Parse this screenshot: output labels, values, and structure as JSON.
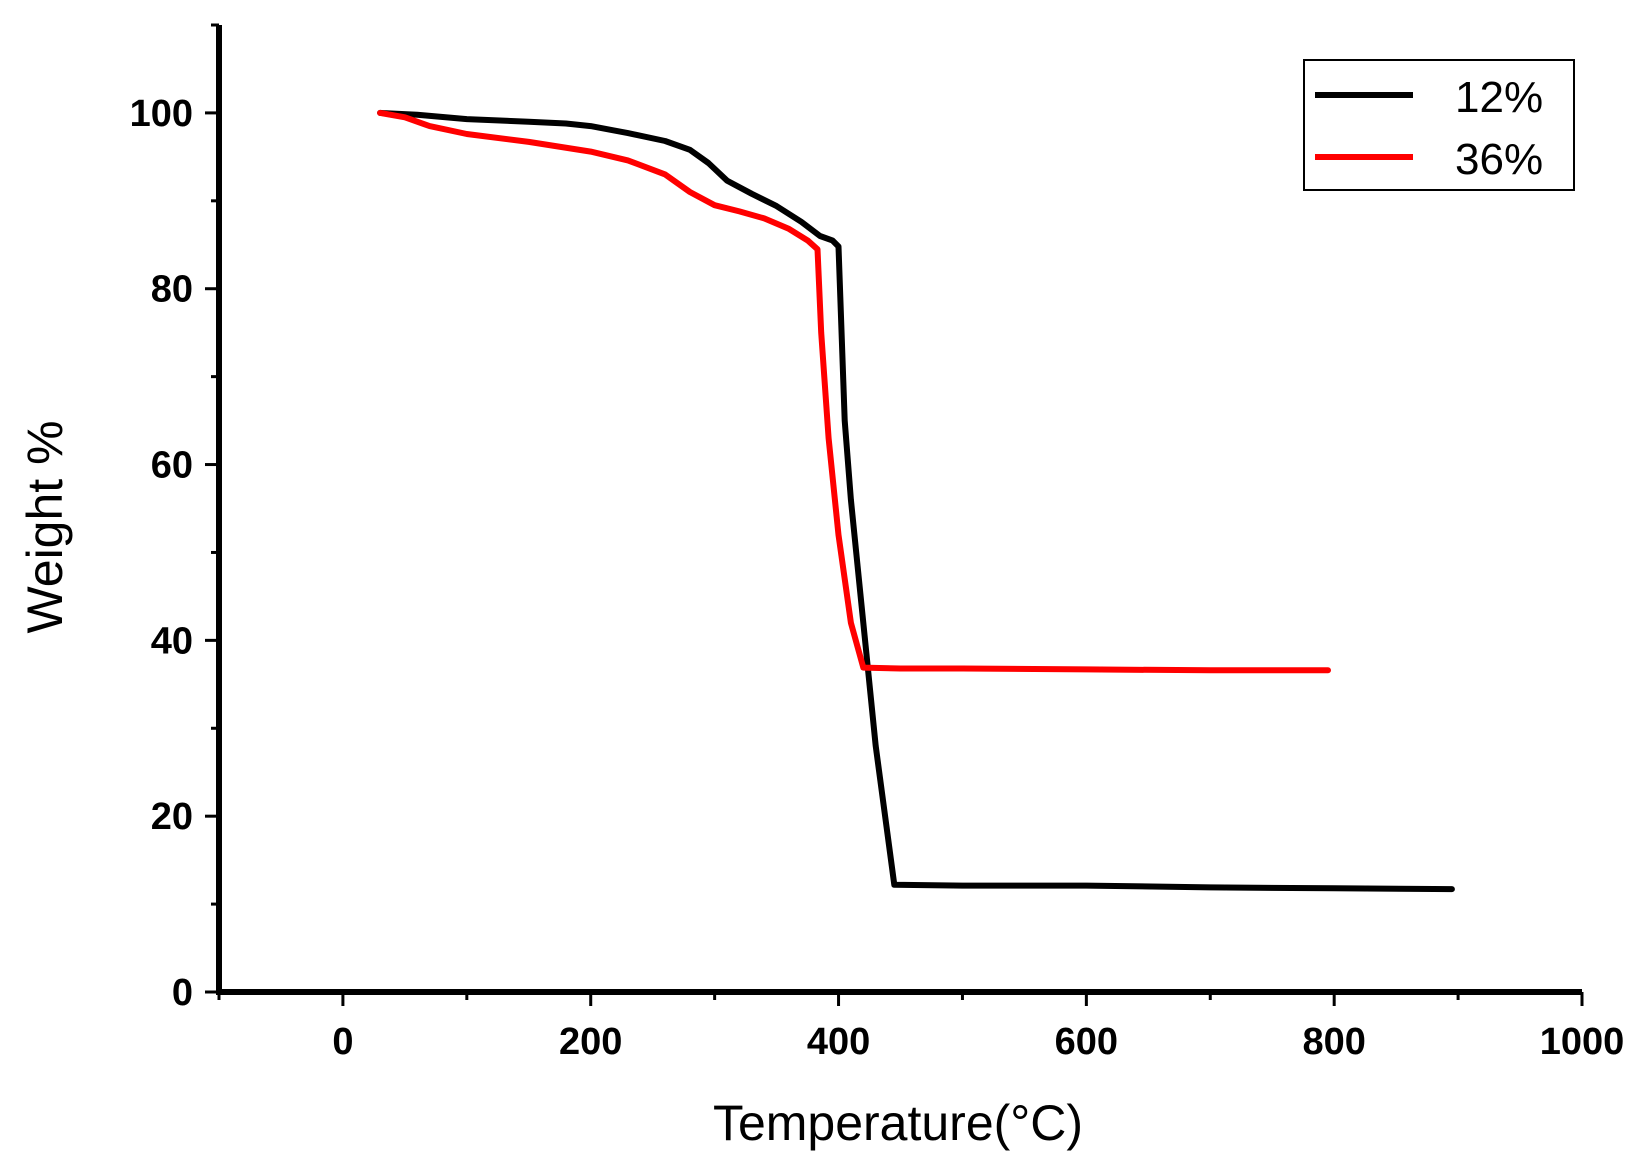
{
  "chart_data": {
    "type": "line",
    "xlabel": "Temperature(°C)",
    "ylabel": "Weight %",
    "xlim": [
      -100,
      1000
    ],
    "ylim": [
      0,
      110
    ],
    "xticks": [
      0,
      200,
      400,
      600,
      800,
      1000
    ],
    "yticks": [
      0,
      20,
      40,
      60,
      80,
      100
    ],
    "grid": false,
    "legend_position": "top-right",
    "series": [
      {
        "name": "12%",
        "color": "#000000",
        "x": [
          30,
          60,
          100,
          150,
          180,
          200,
          230,
          260,
          280,
          295,
          310,
          330,
          350,
          370,
          385,
          395,
          400,
          405,
          410,
          420,
          430,
          445,
          500,
          600,
          700,
          800,
          895
        ],
        "y": [
          100,
          99.8,
          99.3,
          99.0,
          98.8,
          98.5,
          97.7,
          96.8,
          95.8,
          94.3,
          92.3,
          90.8,
          89.4,
          87.6,
          86.0,
          85.5,
          84.8,
          65.0,
          56.0,
          42.0,
          28.0,
          12.2,
          12.1,
          12.1,
          11.9,
          11.8,
          11.7
        ]
      },
      {
        "name": "36%",
        "color": "#ff0000",
        "x": [
          30,
          50,
          70,
          100,
          150,
          200,
          230,
          260,
          280,
          300,
          320,
          340,
          360,
          375,
          383,
          386,
          392,
          400,
          410,
          420,
          450,
          500,
          600,
          700,
          795
        ],
        "y": [
          100,
          99.5,
          98.5,
          97.6,
          96.7,
          95.6,
          94.6,
          93.0,
          91.0,
          89.5,
          88.8,
          88.0,
          86.8,
          85.5,
          84.5,
          75.0,
          63.0,
          52.0,
          42.0,
          36.9,
          36.8,
          36.8,
          36.7,
          36.6,
          36.6
        ]
      }
    ]
  }
}
